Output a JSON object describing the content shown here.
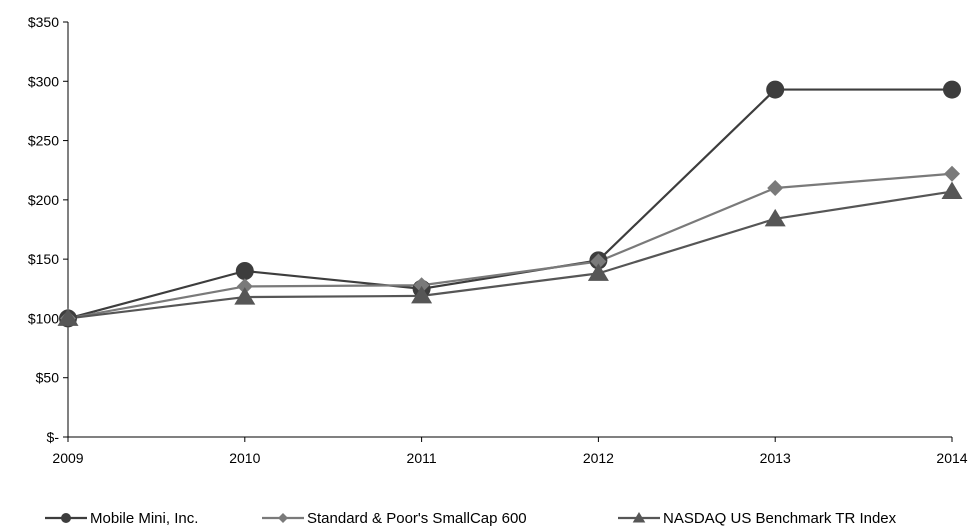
{
  "chart_data": {
    "type": "line",
    "title": "",
    "xlabel": "",
    "ylabel": "",
    "categories": [
      "2009",
      "2010",
      "2011",
      "2012",
      "2013",
      "2014"
    ],
    "y_ticks": [
      0,
      50,
      100,
      150,
      200,
      250,
      300,
      350
    ],
    "y_tick_labels": [
      "$-",
      "$50",
      "$100",
      "$150",
      "$200",
      "$250",
      "$300",
      "$350"
    ],
    "ylim": [
      0,
      350
    ],
    "grid": false,
    "legend_position": "bottom",
    "series": [
      {
        "name": "Mobile Mini, Inc.",
        "values": [
          100,
          140,
          125,
          149,
          293,
          293
        ],
        "color": "#3d3d3d",
        "marker": "circle"
      },
      {
        "name": "Standard & Poor's SmallCap 600",
        "values": [
          100,
          127,
          128,
          148,
          210,
          222
        ],
        "color": "#7a7a7a",
        "marker": "diamond"
      },
      {
        "name": "NASDAQ US Benchmark TR Index",
        "values": [
          100,
          118,
          119,
          138,
          184,
          207
        ],
        "color": "#565656",
        "marker": "triangle"
      }
    ]
  }
}
